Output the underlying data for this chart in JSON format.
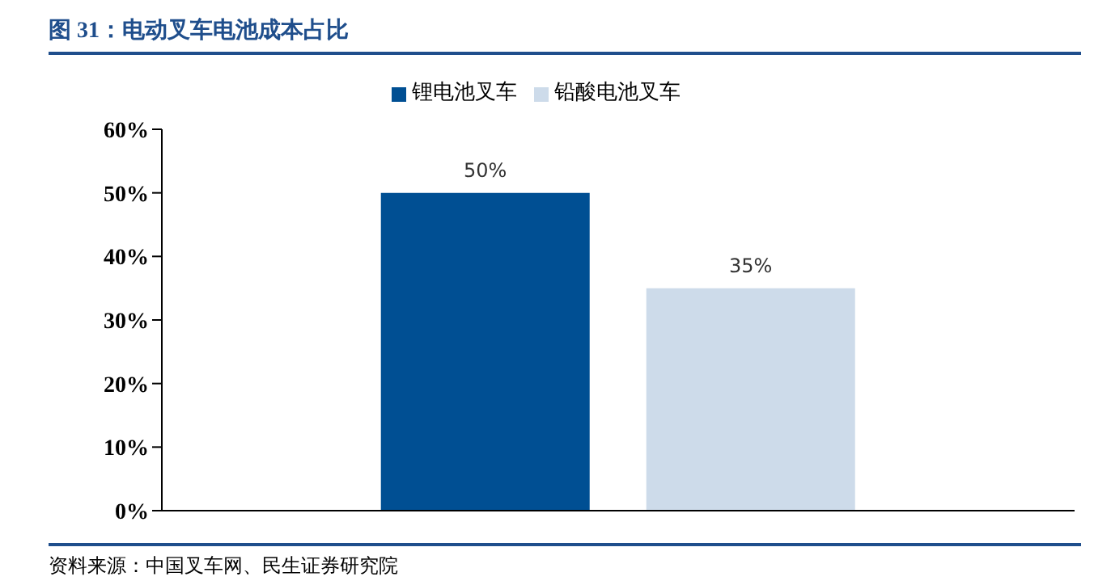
{
  "chart_data": {
    "type": "bar",
    "title": "图 31：电动叉车电池成本占比",
    "categories": [
      null
    ],
    "series": [
      {
        "name": "锂电池叉车",
        "color": "#004f93",
        "values": [
          50
        ],
        "value_labels": [
          "50%"
        ]
      },
      {
        "name": "铅酸电池叉车",
        "color": "#cddbea",
        "values": [
          35
        ],
        "value_labels": [
          "35%"
        ]
      }
    ],
    "ylim": [
      0,
      60
    ],
    "yticks": [
      {
        "value": 0,
        "label": "0%"
      },
      {
        "value": 10,
        "label": "10%"
      },
      {
        "value": 20,
        "label": "20%"
      },
      {
        "value": 30,
        "label": "30%"
      },
      {
        "value": 40,
        "label": "40%"
      },
      {
        "value": 50,
        "label": "50%"
      },
      {
        "value": 60,
        "label": "60%"
      }
    ],
    "grid": false,
    "legend": "top",
    "annotations": [
      "资料来源：中国叉车网、民生证券研究院"
    ]
  }
}
